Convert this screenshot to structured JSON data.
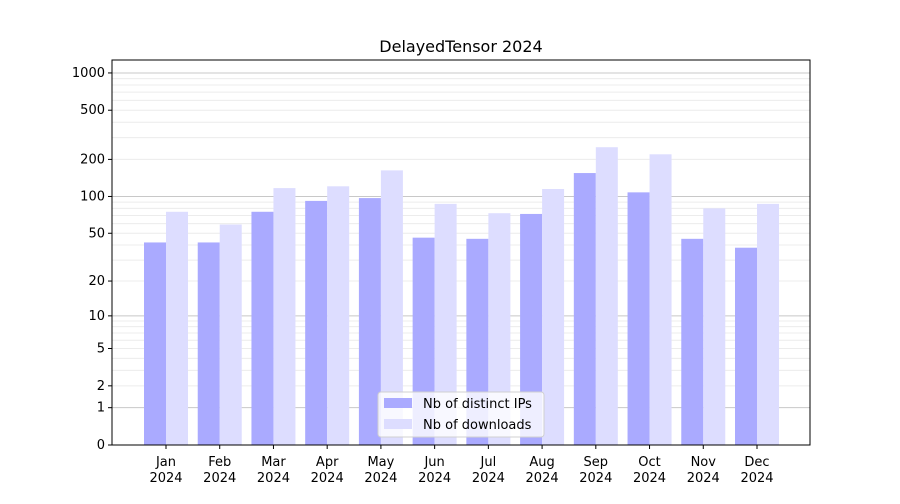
{
  "chart_data": {
    "type": "bar",
    "title": "DelayedTensor 2024",
    "xlabel": "",
    "ylabel": "",
    "y_scale": "symlog (log10(1+y))",
    "ylim": [
      0,
      1340
    ],
    "grid": true,
    "legend_position": "lower-center",
    "yticks": [
      0,
      1,
      2,
      5,
      10,
      20,
      50,
      100,
      200,
      500,
      1000
    ],
    "categories": [
      "Jan\n2024",
      "Feb\n2024",
      "Mar\n2024",
      "Apr\n2024",
      "May\n2024",
      "Jun\n2024",
      "Jul\n2024",
      "Aug\n2024",
      "Sep\n2024",
      "Oct\n2024",
      "Nov\n2024",
      "Dec\n2024"
    ],
    "series": [
      {
        "name": "Nb of distinct IPs",
        "color": "#aaaaff",
        "values": [
          42,
          42,
          75,
          92,
          97,
          46,
          45,
          72,
          155,
          108,
          45,
          38
        ]
      },
      {
        "name": "Nb of downloads",
        "color": "#ddddff",
        "values": [
          75,
          59,
          117,
          121,
          163,
          87,
          73,
          115,
          251,
          220,
          80,
          87
        ]
      }
    ]
  }
}
